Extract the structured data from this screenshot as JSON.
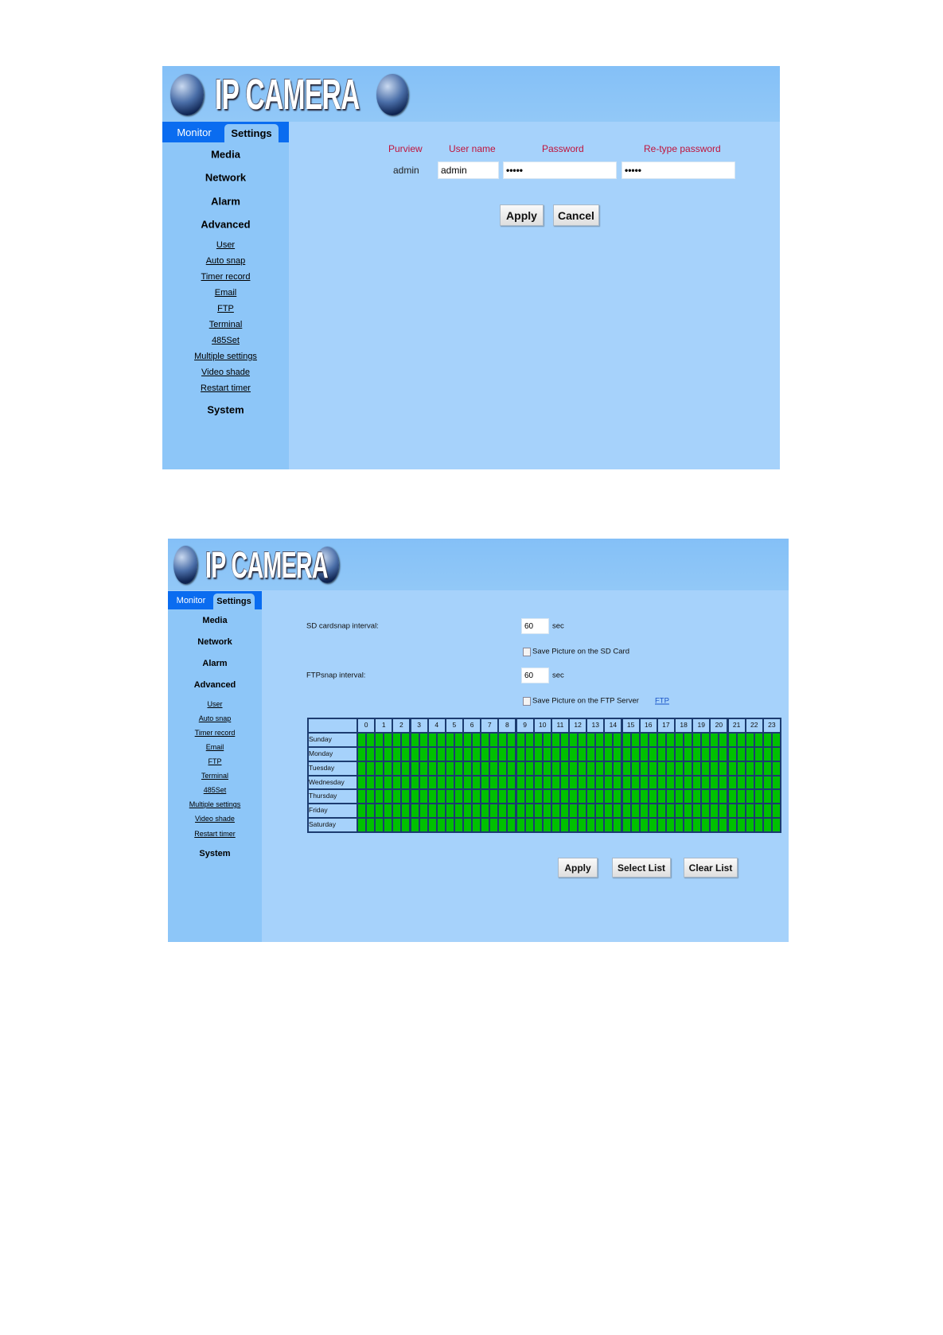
{
  "logo_text": "IP CAMERA",
  "tabs": {
    "monitor": "Monitor",
    "settings": "Settings"
  },
  "sidebar": {
    "main": [
      "Media",
      "Network",
      "Alarm",
      "Advanced"
    ],
    "links": [
      "User",
      "Auto snap",
      "Timer record",
      "Email",
      "FTP",
      "Terminal",
      "485Set",
      "Multiple settings",
      "Video shade",
      "Restart timer"
    ],
    "system": "System"
  },
  "user_panel": {
    "headers": {
      "purview": "Purview",
      "username": "User name",
      "password": "Password",
      "retype": "Re-type password"
    },
    "row": {
      "purview": "admin",
      "username": "admin",
      "password": "•••••",
      "retype": "•••••"
    },
    "apply": "Apply",
    "cancel": "Cancel"
  },
  "autosnap_panel": {
    "sd_label": "SD cardsnap interval:",
    "sd_value": "60",
    "sd_unit": "sec",
    "sd_checkbox": "Save Picture on the SD Card",
    "sd_checked": false,
    "ftp_label": "FTPsnap interval:",
    "ftp_value": "60",
    "ftp_unit": "sec",
    "ftp_checkbox": "Save Picture on the FTP Server",
    "ftp_checked": false,
    "ftp_link": "FTP",
    "schedule": {
      "hours": [
        "0",
        "1",
        "2",
        "3",
        "4",
        "5",
        "6",
        "7",
        "8",
        "9",
        "10",
        "11",
        "12",
        "13",
        "14",
        "15",
        "16",
        "17",
        "18",
        "19",
        "20",
        "21",
        "22",
        "23"
      ],
      "days": [
        "Sunday",
        "Monday",
        "Tuesday",
        "Wednesday",
        "Thursday",
        "Friday",
        "Saturday"
      ],
      "slots_per_hour": 2,
      "all_selected": true,
      "selected_color": "#00c000"
    },
    "apply": "Apply",
    "select_list": "Select List",
    "clear_list": "Clear List"
  }
}
